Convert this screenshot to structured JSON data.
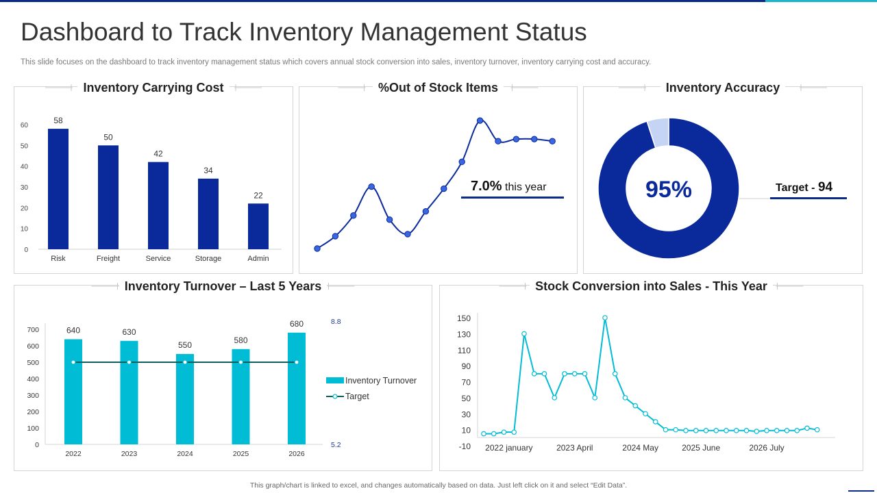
{
  "header": {
    "title": "Dashboard to Track Inventory Management Status",
    "subtitle": "This slide focuses on the dashboard to track inventory management status which covers annual stock conversion into sales, inventory turnover, inventory carrying cost and accuracy."
  },
  "footer": {
    "note": "This graph/chart is linked to excel, and changes automatically based on data. Just left click on it and select “Edit Data”."
  },
  "colors": {
    "navy": "#0a2a9c",
    "teal": "#00bcd4",
    "dark_teal": "#0e5e5e",
    "pale_blue": "#c5d4f5"
  },
  "chart_data": [
    {
      "id": "carrying",
      "type": "bar",
      "title": "Inventory Carrying Cost",
      "categories": [
        "Risk",
        "Freight",
        "Service",
        "Storage",
        "Admin"
      ],
      "values": [
        58,
        50,
        42,
        34,
        22
      ],
      "ylim": [
        0,
        60
      ],
      "yticks": [
        0,
        10,
        20,
        30,
        40,
        50,
        60
      ]
    },
    {
      "id": "outofstock",
      "type": "line",
      "title": "%Out of Stock Items",
      "values": [
        0,
        6,
        16,
        30,
        14,
        7,
        18,
        29,
        42,
        62,
        52,
        53,
        53,
        52
      ],
      "ylim": [
        0,
        65
      ],
      "annotation_value": "7.0%",
      "annotation_text": "this year"
    },
    {
      "id": "accuracy",
      "type": "pie",
      "title": "Inventory Accuracy",
      "values": [
        95,
        5
      ],
      "center_label": "95%",
      "target_label": "Target - ",
      "target_value": "94"
    },
    {
      "id": "turnover",
      "type": "bar",
      "title": "Inventory Turnover – Last 5 Years",
      "categories": [
        "2022",
        "2023",
        "2024",
        "2025",
        "2026"
      ],
      "series": [
        {
          "name": "Inventory Turnover",
          "values": [
            640,
            630,
            550,
            580,
            680
          ]
        },
        {
          "name": "Target",
          "values": [
            7.6,
            7.6,
            7.6,
            7.6,
            7.6
          ]
        }
      ],
      "data_labels": [
        "640",
        "630",
        "550",
        "580",
        "680"
      ],
      "ylim": [
        0,
        700
      ],
      "yticks": [
        0,
        100,
        200,
        300,
        400,
        500,
        600,
        700
      ],
      "y2lim": [
        5.2,
        8.8
      ],
      "y2ticks": [
        "8.8",
        "5.2"
      ]
    },
    {
      "id": "conversion",
      "type": "line",
      "title": "Stock Conversion into Sales - This Year",
      "values": [
        5,
        5,
        7,
        7,
        130,
        80,
        80,
        50,
        80,
        80,
        80,
        50,
        150,
        80,
        50,
        40,
        30,
        20,
        10,
        10,
        9,
        9,
        9,
        9,
        9,
        9,
        9,
        8,
        9,
        9,
        9,
        9,
        12,
        10
      ],
      "ylim": [
        -10,
        150
      ],
      "yticks": [
        150,
        130,
        110,
        90,
        70,
        50,
        30,
        10,
        -10
      ],
      "xlabels": [
        "2022 january",
        "2023 April",
        "2024 May",
        "2025 June",
        "2026 July"
      ],
      "xlabel_index": [
        2.5,
        9,
        15.5,
        21.5,
        28
      ]
    }
  ]
}
